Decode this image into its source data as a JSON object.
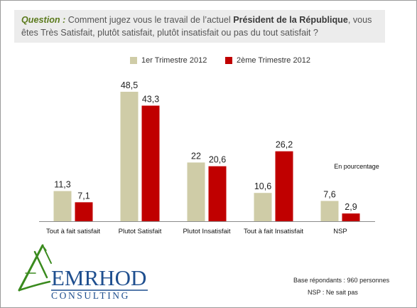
{
  "question": {
    "label": "Question :",
    "text_before": " Comment jugez vous le travail de l’actuel ",
    "bold": "Président de la République",
    "text_after": ", vous êtes Très Satisfait, plutôt satisfait, plutôt insatisfait ou pas du tout satisfait ?"
  },
  "chart_data": {
    "type": "bar",
    "categories": [
      "Tout à fait satisfait",
      "Plutot Satisfait",
      "Plutot Insatisfait",
      "Tout à fait Insatisfait",
      "NSP"
    ],
    "series": [
      {
        "name": "1er Trimestre 2012",
        "values": [
          11.3,
          48.5,
          22,
          10.6,
          7.6
        ],
        "labels": [
          "11,3",
          "48,5",
          "22",
          "10,6",
          "7,6"
        ],
        "color": "#cfcca7"
      },
      {
        "name": "2ème Trimestre 2012",
        "values": [
          7.1,
          43.3,
          20.6,
          26.2,
          2.9
        ],
        "labels": [
          "7,1",
          "43,3",
          "20,6",
          "26,2",
          "2,9"
        ],
        "color": "#c00000"
      }
    ],
    "ylim": [
      0,
      48.5
    ],
    "unit_note": "En pourcentage",
    "grid": false,
    "legend_position": "top"
  },
  "logo": {
    "name": "EMRHOD",
    "tagline": "CONSULTING"
  },
  "footer": {
    "base": "Base répondants : 960  personnes",
    "nsp": "NSP : Ne sait pas"
  }
}
